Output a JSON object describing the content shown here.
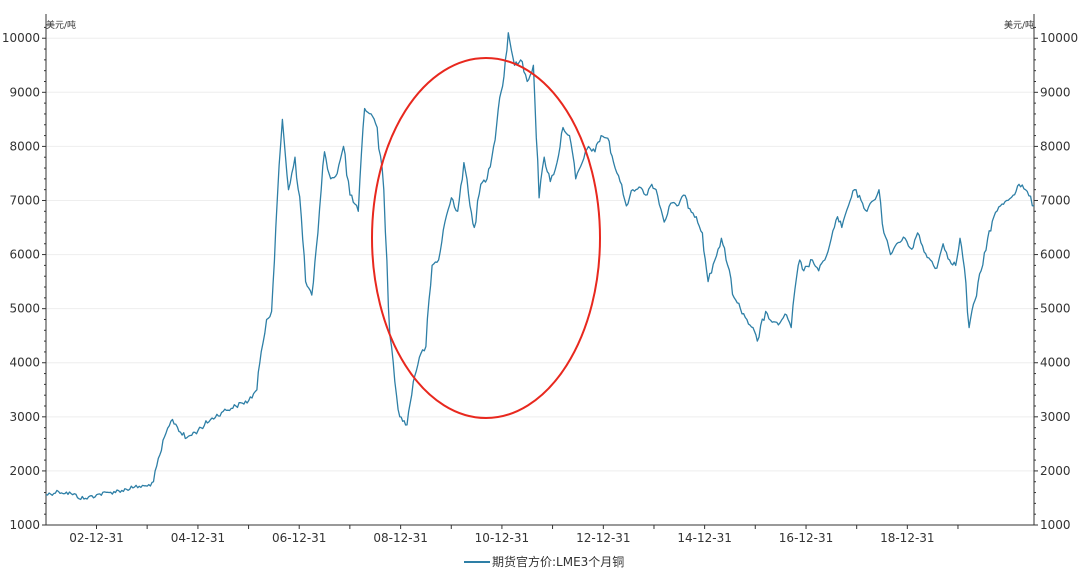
{
  "chart_data": {
    "type": "line",
    "y_unit_left": "美元/吨",
    "y_unit_right": "美元/吨",
    "ylim": [
      1000,
      10300
    ],
    "yticks": [
      1000,
      2000,
      3000,
      4000,
      5000,
      6000,
      7000,
      8000,
      9000,
      10000
    ],
    "xlim": [
      "2002-01-01",
      "2021-07-01"
    ],
    "xticks": [
      {
        "label": "02-12-31",
        "date": "2002-12-31"
      },
      {
        "label": "04-12-31",
        "date": "2004-12-31"
      },
      {
        "label": "06-12-31",
        "date": "2006-12-31"
      },
      {
        "label": "08-12-31",
        "date": "2008-12-31"
      },
      {
        "label": "10-12-31",
        "date": "2010-12-31"
      },
      {
        "label": "12-12-31",
        "date": "2012-12-31"
      },
      {
        "label": "14-12-31",
        "date": "2014-12-31"
      },
      {
        "label": "16-12-31",
        "date": "2016-12-31"
      },
      {
        "label": "18-12-31",
        "date": "2018-12-31"
      }
    ],
    "grid": true,
    "legend_position": "bottom-center",
    "series": [
      {
        "name": "期货官方价:LME3个月铜",
        "color": "#2e7fa6",
        "x": [
          "2002-01-01",
          "2002-04-01",
          "2002-07-01",
          "2002-10-01",
          "2003-01-01",
          "2003-04-01",
          "2003-07-01",
          "2003-10-01",
          "2004-01-01",
          "2004-02-15",
          "2004-04-01",
          "2004-05-15",
          "2004-07-01",
          "2004-10-01",
          "2005-01-01",
          "2005-04-01",
          "2005-07-01",
          "2005-10-01",
          "2006-01-01",
          "2006-03-01",
          "2006-04-01",
          "2006-05-10",
          "2006-06-15",
          "2006-07-15",
          "2006-09-01",
          "2006-10-15",
          "2006-12-01",
          "2007-01-15",
          "2007-02-15",
          "2007-04-01",
          "2007-05-15",
          "2007-07-01",
          "2007-08-15",
          "2007-10-01",
          "2007-11-15",
          "2008-01-01",
          "2008-03-01",
          "2008-04-15",
          "2008-06-01",
          "2008-07-15",
          "2008-09-01",
          "2008-10-15",
          "2008-12-01",
          "2008-12-25",
          "2009-02-15",
          "2009-04-01",
          "2009-05-15",
          "2009-07-01",
          "2009-08-15",
          "2009-10-01",
          "2009-11-15",
          "2010-01-01",
          "2010-02-15",
          "2010-04-01",
          "2010-05-15",
          "2010-06-15",
          "2010-08-01",
          "2010-09-15",
          "2010-11-01",
          "2010-12-15",
          "2011-01-15",
          "2011-02-15",
          "2011-04-01",
          "2011-05-15",
          "2011-07-01",
          "2011-08-15",
          "2011-09-25",
          "2011-11-01",
          "2011-12-15",
          "2012-02-01",
          "2012-03-15",
          "2012-05-01",
          "2012-06-15",
          "2012-08-01",
          "2012-09-15",
          "2012-11-01",
          "2012-12-15",
          "2013-02-01",
          "2013-03-15",
          "2013-05-01",
          "2013-06-15",
          "2013-08-01",
          "2013-09-15",
          "2013-11-01",
          "2013-12-15",
          "2014-01-15",
          "2014-03-15",
          "2014-05-01",
          "2014-06-15",
          "2014-08-01",
          "2014-09-15",
          "2014-11-01",
          "2014-12-15",
          "2015-01-25",
          "2015-03-15",
          "2015-05-01",
          "2015-06-15",
          "2015-08-01",
          "2015-09-15",
          "2015-11-01",
          "2015-12-15",
          "2016-01-15",
          "2016-03-15",
          "2016-05-01",
          "2016-06-15",
          "2016-08-01",
          "2016-09-15",
          "2016-10-25",
          "2016-11-15",
          "2016-12-15",
          "2017-02-15",
          "2017-04-01",
          "2017-05-15",
          "2017-07-01",
          "2017-08-15",
          "2017-09-15",
          "2017-11-01",
          "2017-12-15",
          "2018-02-01",
          "2018-03-15",
          "2018-05-01",
          "2018-06-10",
          "2018-07-15",
          "2018-09-01",
          "2018-10-15",
          "2018-12-15",
          "2019-02-01",
          "2019-03-15",
          "2019-05-01",
          "2019-06-15",
          "2019-08-01",
          "2019-09-15",
          "2019-11-01",
          "2019-12-15",
          "2020-01-15",
          "2020-02-15",
          "2020-03-20",
          "2020-05-01",
          "2020-06-15",
          "2020-08-01",
          "2020-09-15",
          "2020-11-01",
          "2020-12-15",
          "2021-02-01",
          "2021-03-15",
          "2021-05-01",
          "2021-07-01"
        ],
        "y": [
          1560,
          1620,
          1580,
          1480,
          1560,
          1600,
          1640,
          1700,
          1720,
          1800,
          2300,
          2700,
          2950,
          2600,
          2750,
          2950,
          3100,
          3200,
          3300,
          3500,
          4200,
          4800,
          4950,
          6500,
          8500,
          7200,
          7800,
          6700,
          5500,
          5250,
          6400,
          7900,
          7400,
          7500,
          8000,
          7100,
          6800,
          8700,
          8600,
          8350,
          7200,
          4500,
          3400,
          3000,
          2850,
          3650,
          4100,
          4300,
          5800,
          5900,
          6600,
          7050,
          6800,
          7700,
          6900,
          6500,
          7300,
          7400,
          8000,
          8900,
          9300,
          10100,
          9500,
          9600,
          9200,
          9500,
          7050,
          7800,
          7350,
          7700,
          8350,
          8200,
          7400,
          7700,
          8000,
          7900,
          8200,
          8150,
          7700,
          7350,
          6900,
          7200,
          7250,
          7100,
          7300,
          7200,
          6600,
          6950,
          6900,
          7100,
          6850,
          6700,
          6400,
          5500,
          5900,
          6300,
          5800,
          5200,
          5000,
          4800,
          4650,
          4400,
          4950,
          4750,
          4700,
          4900,
          4650,
          5600,
          5900,
          5700,
          5900,
          5700,
          5900,
          6300,
          6700,
          6500,
          6900,
          7200,
          7000,
          6800,
          7000,
          7200,
          6400,
          6000,
          6200,
          6300,
          6100,
          6400,
          6050,
          5900,
          5750,
          6200,
          5900,
          5800,
          6300,
          5750,
          4650,
          5150,
          5700,
          6300,
          6700,
          6900,
          7000,
          7100,
          7300,
          7200,
          6900
        ]
      }
    ]
  }
}
